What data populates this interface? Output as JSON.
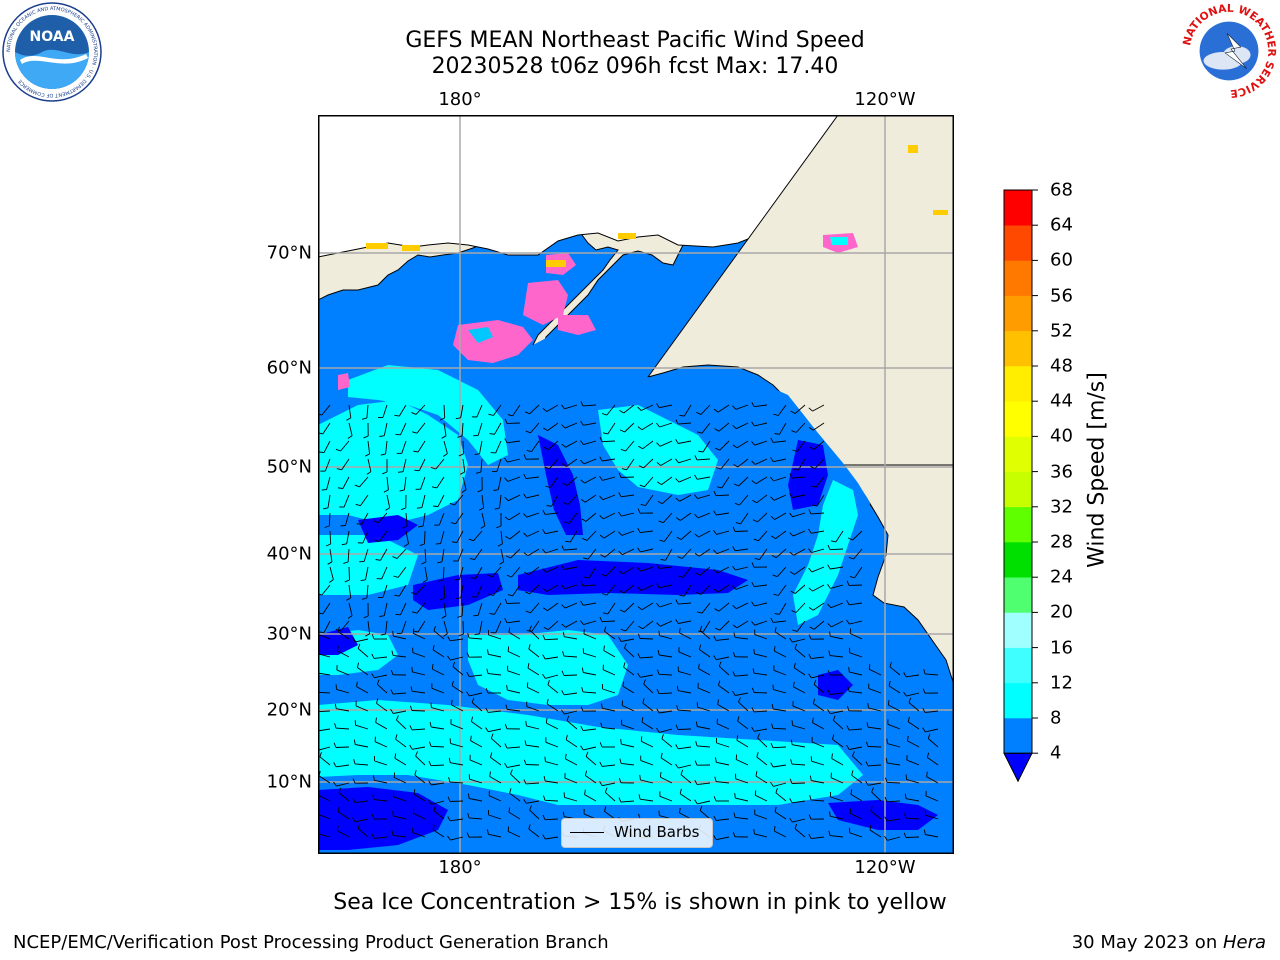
{
  "title_line1": "GEFS MEAN Northeast Pacific Wind Speed",
  "title_line2": "20230528 t06z 096h fcst   Max: 17.40",
  "lon_labels": [
    "180°",
    "120°W"
  ],
  "lat_labels": [
    "70°N",
    "60°N",
    "50°N",
    "40°N",
    "30°N",
    "20°N",
    "10°N"
  ],
  "colorbar": {
    "title": "Wind Speed [m/s]",
    "ticks": [
      "4",
      "8",
      "12",
      "16",
      "20",
      "24",
      "28",
      "32",
      "36",
      "40",
      "44",
      "48",
      "52",
      "56",
      "60",
      "64",
      "68"
    ],
    "colors": [
      "#0080ff",
      "#00ffff",
      "#40ffff",
      "#a0ffff",
      "#50ff70",
      "#00e000",
      "#60ff00",
      "#c8ff00",
      "#e0ff00",
      "#ffff00",
      "#ffee00",
      "#ffc000",
      "#ff9c00",
      "#ff7800",
      "#ff4800",
      "#ff0000"
    ],
    "extend_color": "#0000ff"
  },
  "legend_label": "Wind Barbs",
  "note": "Sea Ice Concentration > 15% is shown in pink to yellow",
  "footer_left": "NCEP/EMC/Verification Post Processing Product Generation Branch",
  "footer_right_date": "30 May 2023 on ",
  "footer_right_host": "Hera",
  "logos": {
    "noaa": {
      "text": "NOAA",
      "ring_text": "NATIONAL OCEANIC AND ATMOSPHERIC ADMINISTRATION · U.S. DEPARTMENT OF COMMERCE"
    },
    "nws": {
      "ring_text": "NATIONAL WEATHER SERVICE"
    }
  },
  "colors": {
    "land": "#efecdc",
    "ocean_base": "#0080ff",
    "calm": "#0000ff",
    "fast": "#00ffff",
    "ice": "#ff66cc"
  }
}
